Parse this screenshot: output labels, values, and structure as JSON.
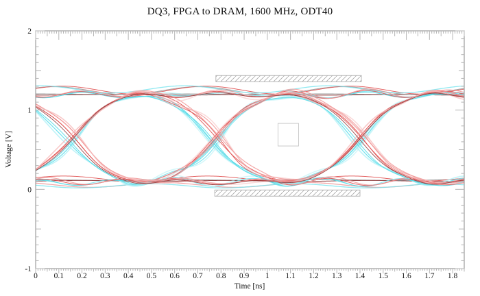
{
  "chart_data": {
    "type": "line",
    "subtype": "eye-diagram",
    "title": "DQ3, FPGA to DRAM, 1600 MHz, ODT40",
    "xlabel": "Time [ns]",
    "ylabel": "Voltage [V]",
    "xlim": [
      0,
      1.85
    ],
    "ylim": [
      -1,
      2
    ],
    "grid": false,
    "legend": "none",
    "x_axis": {
      "major_values": [
        0,
        0.1,
        0.2,
        0.3,
        0.4,
        0.5,
        0.6,
        0.7,
        0.8,
        0.9,
        1,
        1.1,
        1.2,
        1.3,
        1.4,
        1.5,
        1.6,
        1.7,
        1.8
      ],
      "major_labels": [
        "0",
        "0.1",
        "0.2",
        "0.3",
        "0.4",
        "0.5",
        "0.6",
        "0.7",
        "0.8",
        "0.9",
        "1",
        "1.1",
        "1.2",
        "1.3",
        "1.4",
        "1.5",
        "1.6",
        "1.7",
        "1.8"
      ],
      "mid_step": 0.05,
      "minor_step": 0.01
    },
    "y_axis": {
      "major_values": [
        -1,
        0,
        1,
        2
      ],
      "major_labels": [
        "-1",
        "0",
        "1",
        "2"
      ],
      "mid_step": 0.5,
      "minor_step": 0.1
    },
    "signal": {
      "data_rate_label": "1600 MHz",
      "ui_ns": 0.622,
      "crossings_ns": [
        0.155,
        0.777,
        1.399
      ],
      "v_high": 1.2,
      "v_low": 0.09,
      "crossing_voltage": 0.64,
      "edge_tau_ns": 0.075,
      "ripple_period_ns": 0.622,
      "ring": {
        "gate": 0.17,
        "gate_width": 0.05,
        "decay": 1.4,
        "period": 0.34,
        "peak_ref": 0.245
      }
    },
    "masks": [
      {
        "id": "mask-top-hatch",
        "shape": "hatch-rect",
        "t": [
          0.778,
          1.406
        ],
        "v": [
          1.358,
          1.436
        ]
      },
      {
        "id": "mask-bottom-hatch",
        "shape": "hatch-rect",
        "t": [
          0.773,
          1.4
        ],
        "v": [
          -0.086,
          -0.008
        ]
      },
      {
        "id": "eye-center-marker",
        "shape": "outline-rect",
        "t": [
          1.046,
          1.135
        ],
        "v": [
          0.547,
          0.832
        ]
      }
    ],
    "colors": {
      "background": "#ffffff",
      "frame": "#8a8a8a",
      "tick": "#b4b4b4",
      "text": "#141414",
      "mask_stroke": "#adadad",
      "hatch_line": "#a8a8a8",
      "marker_stroke": "#c4c4c4",
      "gray": "#9b9b9b",
      "darkred": "#8f3a3a",
      "red": "#e05252",
      "salmon": "#f09494",
      "lightsalmon": "#f6baba",
      "cyan": "#74e4ee",
      "cyan2": "#52d9e6",
      "lightcyan": "#b0f1f6"
    },
    "traces": [
      {
        "kind": "flat",
        "color": "gray",
        "level": "high",
        "dv": 0.0,
        "ripple": 0.004,
        "phase": 0.0,
        "width": 1.1,
        "opacity": 0.95
      },
      {
        "kind": "flat",
        "color": "darkred",
        "level": "high",
        "dv": -0.008,
        "ripple": 0.004,
        "phase": 0.3,
        "width": 1.0,
        "opacity": 0.95
      },
      {
        "kind": "flat",
        "color": "gray",
        "level": "high",
        "dv": 0.045,
        "ripple": 0.05,
        "phase": 0.08,
        "width": 1.1,
        "opacity": 0.9
      },
      {
        "kind": "flat",
        "color": "red",
        "level": "high",
        "dv": 0.052,
        "ripple": 0.05,
        "phase": 0.115,
        "width": 1.0,
        "opacity": 0.9
      },
      {
        "kind": "flat",
        "color": "cyan",
        "level": "high",
        "dv": 0.062,
        "ripple": 0.045,
        "phase": 0.02,
        "width": 1.3,
        "opacity": 0.8
      },
      {
        "kind": "flat",
        "color": "gray",
        "level": "low",
        "dv": 0.028,
        "ripple": 0.006,
        "phase": 0.0,
        "width": 1.1,
        "opacity": 0.95
      },
      {
        "kind": "flat",
        "color": "darkred",
        "level": "low",
        "dv": 0.016,
        "ripple": 0.006,
        "phase": 0.2,
        "width": 1.0,
        "opacity": 0.95
      },
      {
        "kind": "flat",
        "color": "red",
        "level": "low",
        "dv": 0.046,
        "ripple": 0.032,
        "phase": 0.12,
        "width": 1.0,
        "opacity": 0.9
      },
      {
        "kind": "flat",
        "color": "salmon",
        "level": "low",
        "dv": -0.034,
        "ripple": 0.03,
        "phase": 0.55,
        "width": 1.2,
        "opacity": 0.85
      },
      {
        "kind": "flat",
        "color": "cyan",
        "level": "low",
        "dv": -0.046,
        "ripple": 0.026,
        "phase": 0.5,
        "width": 1.3,
        "opacity": 0.8
      },
      {
        "kind": "pattern",
        "color": "cyan",
        "patterns": [
          "0101",
          "1010",
          "0110",
          "1001",
          "0011",
          "1100"
        ],
        "rise_dt": 0.012,
        "fall_dt": -0.03,
        "dv": 0.0,
        "ring_amp": 0.06,
        "width": 1.2,
        "opacity": 0.85
      },
      {
        "kind": "pattern",
        "color": "lightcyan",
        "patterns": [
          "0101",
          "1010",
          "0110",
          "1001"
        ],
        "rise_dt": 0.022,
        "fall_dt": -0.044,
        "dv": 0.015,
        "ring_amp": 0.07,
        "width": 1.6,
        "opacity": 0.55
      },
      {
        "kind": "pattern",
        "color": "cyan2",
        "patterns": [
          "0101",
          "1010",
          "0011",
          "1100"
        ],
        "rise_dt": 0.002,
        "fall_dt": -0.018,
        "dv": -0.01,
        "ring_amp": 0.05,
        "width": 1.0,
        "opacity": 0.9
      },
      {
        "kind": "pattern",
        "color": "red",
        "patterns": [
          "0101",
          "1010",
          "0110",
          "1001",
          "0011",
          "1100"
        ],
        "rise_dt": -0.006,
        "fall_dt": 0.006,
        "dv": 0.0,
        "ring_amp": 0.055,
        "width": 1.0,
        "opacity": 0.9
      },
      {
        "kind": "pattern",
        "color": "salmon",
        "patterns": [
          "0101",
          "1010",
          "0110",
          "1001",
          "0011",
          "1100"
        ],
        "rise_dt": 0.006,
        "fall_dt": 0.02,
        "dv": 0.012,
        "ring_amp": 0.065,
        "width": 1.2,
        "opacity": 0.8
      },
      {
        "kind": "pattern",
        "color": "lightsalmon",
        "patterns": [
          "0101",
          "1010",
          "0110",
          "1001"
        ],
        "rise_dt": -0.018,
        "fall_dt": 0.032,
        "dv": -0.012,
        "ring_amp": 0.07,
        "width": 1.5,
        "opacity": 0.55
      },
      {
        "kind": "pattern",
        "color": "darkred",
        "patterns": [
          "0110",
          "1001"
        ],
        "rise_dt": 0.0,
        "fall_dt": -0.004,
        "dv": -0.006,
        "ring_amp": 0.045,
        "width": 0.9,
        "opacity": 0.9
      }
    ]
  }
}
